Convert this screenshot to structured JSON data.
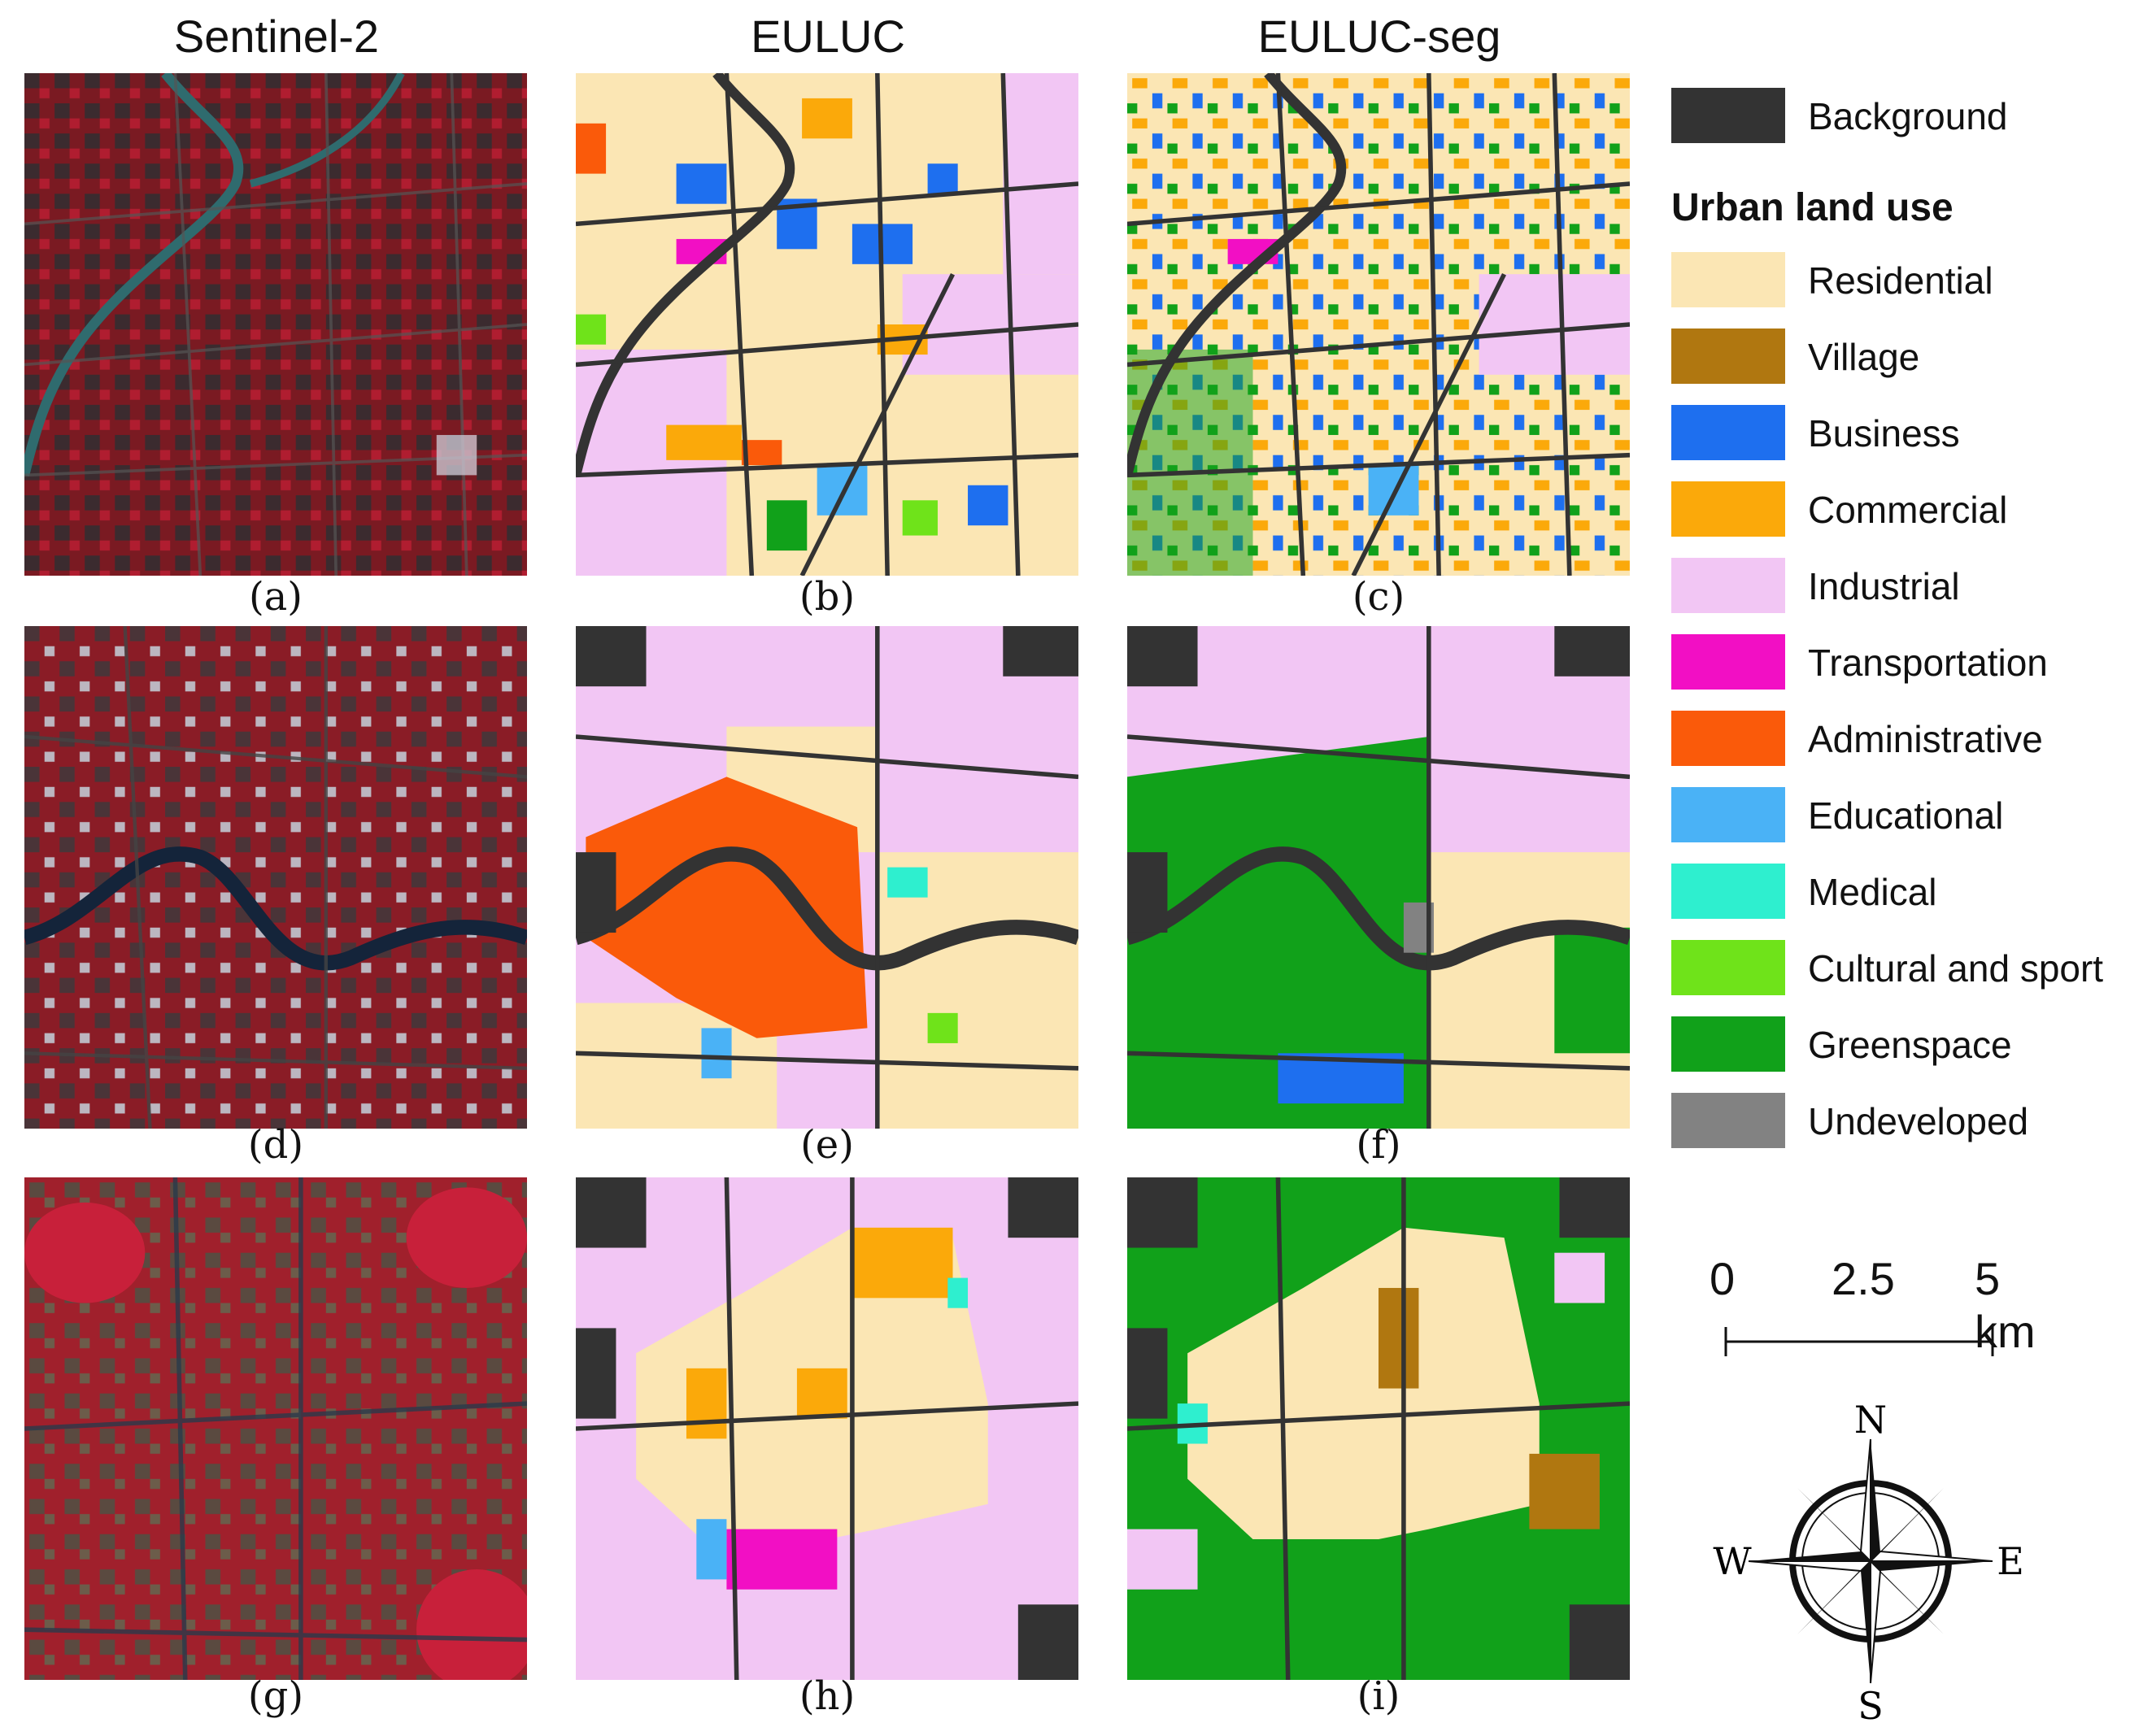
{
  "columns": {
    "sentinel": "Sentinel-2",
    "euluc": "EULUC",
    "euluc_seg": "EULUC-seg"
  },
  "panels": {
    "a": "(a)",
    "b": "(b)",
    "c": "(c)",
    "d": "(d)",
    "e": "(e)",
    "f": "(f)",
    "g": "(g)",
    "h": "(h)",
    "i": "(i)"
  },
  "legend": {
    "background": "Background",
    "heading": "Urban land use",
    "classes": [
      {
        "label": "Residential",
        "color": "#FBE6B4"
      },
      {
        "label": "Village",
        "color": "#B07710"
      },
      {
        "label": "Business",
        "color": "#1E6FEF"
      },
      {
        "label": "Commercial",
        "color": "#FBA90A"
      },
      {
        "label": "Industrial",
        "color": "#F2C6F4"
      },
      {
        "label": "Transportation",
        "color": "#F20FC4"
      },
      {
        "label": "Administrative",
        "color": "#FA5A0A"
      },
      {
        "label": "Educational",
        "color": "#4AB2F6"
      },
      {
        "label": "Medical",
        "color": "#2EEFCF"
      },
      {
        "label": "Cultural and sport",
        "color": "#6FE31A"
      },
      {
        "label": "Greenspace",
        "color": "#11A11A"
      },
      {
        "label": "Undeveloped",
        "color": "#828282"
      }
    ],
    "background_color": "#333333"
  },
  "scale": {
    "tick0": "0",
    "tick1": "2.5",
    "tick2": "5 km"
  },
  "compass": {
    "n": "N",
    "s": "S",
    "e": "E",
    "w": "W"
  }
}
